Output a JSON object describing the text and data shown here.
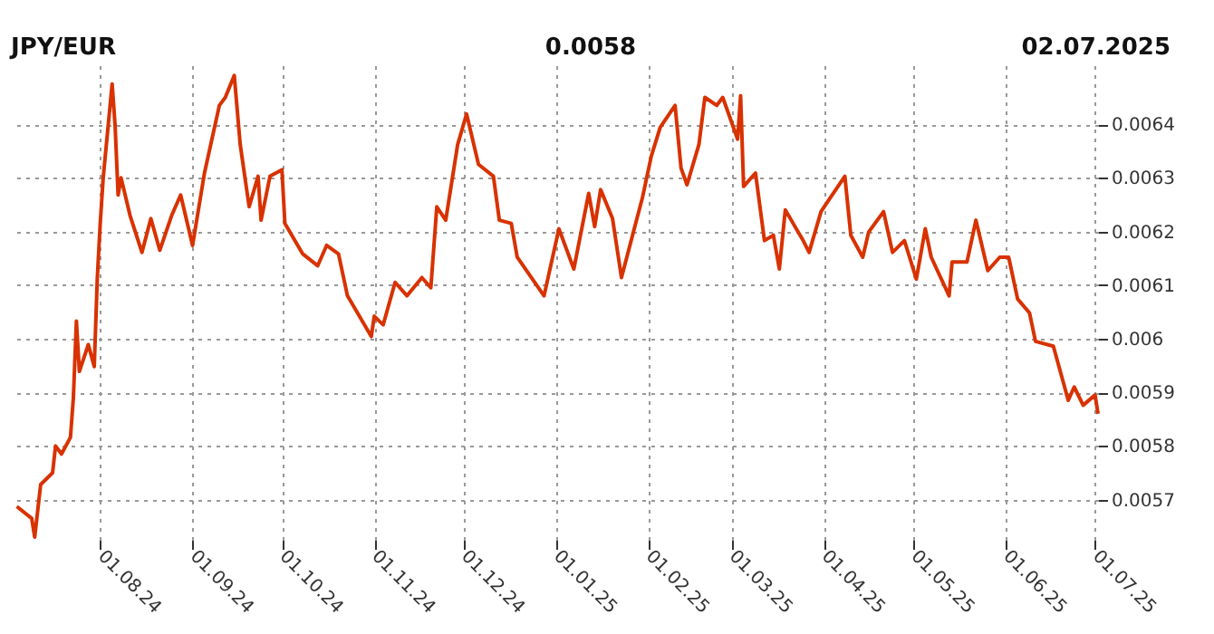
{
  "chart_data": {
    "type": "line",
    "title": "JPY/EUR",
    "annotations": [
      "0.0058",
      "02.07.2025"
    ],
    "x": [
      "2024-07-04",
      "2024-07-09",
      "2024-07-10",
      "2024-07-12",
      "2024-07-16",
      "2024-07-17",
      "2024-07-19",
      "2024-07-22",
      "2024-07-23",
      "2024-07-24",
      "2024-07-25",
      "2024-07-28",
      "2024-07-30",
      "2024-07-31",
      "2024-08-01",
      "2024-08-02",
      "2024-08-05",
      "2024-08-06",
      "2024-08-07",
      "2024-08-08",
      "2024-08-11",
      "2024-08-15",
      "2024-08-18",
      "2024-08-21",
      "2024-08-25",
      "2024-08-28",
      "2024-09-01",
      "2024-09-05",
      "2024-09-10",
      "2024-09-12",
      "2024-09-15",
      "2024-09-17",
      "2024-09-20",
      "2024-09-23",
      "2024-09-24",
      "2024-09-27",
      "2024-10-01",
      "2024-10-02",
      "2024-10-08",
      "2024-10-13",
      "2024-10-16",
      "2024-10-20",
      "2024-10-23",
      "2024-10-31",
      "2024-11-01",
      "2024-11-04",
      "2024-11-08",
      "2024-11-12",
      "2024-11-17",
      "2024-11-20",
      "2024-11-22",
      "2024-11-25",
      "2024-11-29",
      "2024-12-02",
      "2024-12-06",
      "2024-12-11",
      "2024-12-13",
      "2024-12-17",
      "2024-12-19",
      "2024-12-28",
      "2025-01-02",
      "2025-01-07",
      "2025-01-12",
      "2025-01-14",
      "2025-01-16",
      "2025-01-20",
      "2025-01-23",
      "2025-01-27",
      "2025-01-30",
      "2025-02-02",
      "2025-02-05",
      "2025-02-10",
      "2025-02-12",
      "2025-02-14",
      "2025-02-18",
      "2025-02-20",
      "2025-02-24",
      "2025-02-26",
      "2025-03-03",
      "2025-03-04",
      "2025-03-05",
      "2025-03-09",
      "2025-03-12",
      "2025-03-15",
      "2025-03-17",
      "2025-03-19",
      "2025-03-25",
      "2025-03-27",
      "2025-03-31",
      "2025-04-03",
      "2025-04-08",
      "2025-04-10",
      "2025-04-14",
      "2025-04-16",
      "2025-04-21",
      "2025-04-24",
      "2025-04-28",
      "2025-05-02",
      "2025-05-05",
      "2025-05-07",
      "2025-05-13",
      "2025-05-14",
      "2025-05-19",
      "2025-05-22",
      "2025-05-26",
      "2025-05-30",
      "2025-06-02",
      "2025-06-05",
      "2025-06-09",
      "2025-06-11",
      "2025-06-17",
      "2025-06-22",
      "2025-06-24",
      "2025-06-27",
      "2025-07-01",
      "2025-07-02"
    ],
    "series": [
      {
        "color": "#d83200",
        "values": [
          0.005687,
          0.005665,
          0.00563,
          0.005728,
          0.00575,
          0.0058,
          0.005785,
          0.005816,
          0.005891,
          0.006033,
          0.005939,
          0.005989,
          0.005948,
          0.006111,
          0.006215,
          0.0063,
          0.006475,
          0.006397,
          0.006268,
          0.0063,
          0.00623,
          0.006161,
          0.006224,
          0.006165,
          0.00623,
          0.006268,
          0.006174,
          0.006309,
          0.006435,
          0.00645,
          0.006491,
          0.006362,
          0.006246,
          0.006303,
          0.006221,
          0.006303,
          0.006315,
          0.006215,
          0.006158,
          0.006136,
          0.006174,
          0.006158,
          0.00608,
          0.006004,
          0.006042,
          0.006026,
          0.006105,
          0.00608,
          0.006114,
          0.006095,
          0.006246,
          0.006221,
          0.006362,
          0.006419,
          0.006325,
          0.006303,
          0.006221,
          0.006215,
          0.006152,
          0.00608,
          0.006205,
          0.00613,
          0.006271,
          0.006209,
          0.006278,
          0.006224,
          0.006114,
          0.006199,
          0.006262,
          0.00634,
          0.006394,
          0.006435,
          0.006318,
          0.006287,
          0.006362,
          0.00645,
          0.006435,
          0.00645,
          0.006372,
          0.006453,
          0.006284,
          0.006309,
          0.006183,
          0.006193,
          0.00613,
          0.00624,
          0.006183,
          0.006161,
          0.006237,
          0.006262,
          0.006303,
          0.006193,
          0.006152,
          0.006199,
          0.006237,
          0.006161,
          0.006183,
          0.006111,
          0.006205,
          0.006152,
          0.00608,
          0.006143,
          0.006143,
          0.006221,
          0.006127,
          0.006152,
          0.006152,
          0.006074,
          0.006048,
          0.005995,
          0.005986,
          0.005885,
          0.00591,
          0.005876,
          0.005895,
          0.00586
        ]
      }
    ],
    "xlim": [
      "2024-07-02",
      "2025-07-02"
    ],
    "xticks": [
      {
        "value": "2024-08-01",
        "label": "01.08.24"
      },
      {
        "value": "2024-09-01",
        "label": "01.09.24"
      },
      {
        "value": "2024-10-01",
        "label": "01.10.24"
      },
      {
        "value": "2024-11-01",
        "label": "01.11.24"
      },
      {
        "value": "2024-12-01",
        "label": "01.12.24"
      },
      {
        "value": "2025-01-01",
        "label": "01.01.25"
      },
      {
        "value": "2025-02-01",
        "label": "01.02.25"
      },
      {
        "value": "2025-03-01",
        "label": "01.03.25"
      },
      {
        "value": "2025-04-01",
        "label": "01.04.25"
      },
      {
        "value": "2025-05-01",
        "label": "01.05.25"
      },
      {
        "value": "2025-06-01",
        "label": "01.06.25"
      },
      {
        "value": "2025-07-01",
        "label": "01.07.25"
      }
    ],
    "ylim": [
      0.005625,
      0.00651
    ],
    "yticks": [
      0.0057,
      0.0058,
      0.0059,
      0.006,
      0.0061,
      0.0062,
      0.0063,
      0.0064
    ],
    "grid": true,
    "legend": false,
    "marker": "none",
    "line_style": "solid"
  }
}
